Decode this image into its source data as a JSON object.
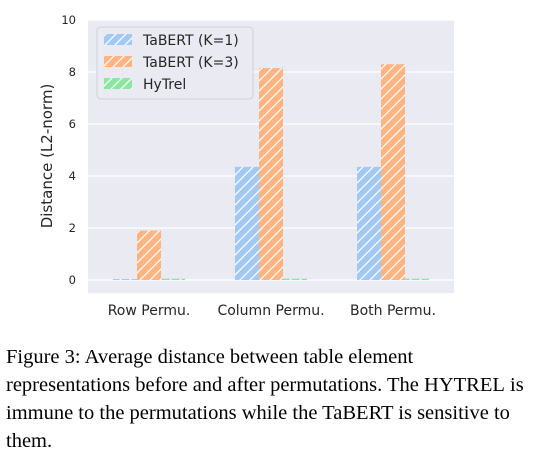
{
  "chart_data": {
    "type": "bar",
    "categories": [
      "Row Permu.",
      "Column Permu.",
      "Both Permu."
    ],
    "series": [
      {
        "name": "TaBERT (K=1)",
        "values": [
          0.0,
          4.35,
          4.35
        ],
        "color": "#a1c9f4",
        "hatch": "//"
      },
      {
        "name": "TaBERT (K=3)",
        "values": [
          1.9,
          8.15,
          8.3
        ],
        "color": "#ffb482",
        "hatch": "//"
      },
      {
        "name": "HyTrel",
        "values": [
          0.05,
          0.05,
          0.05
        ],
        "color": "#8de5a1",
        "hatch": "//"
      }
    ],
    "ylabel": "Distance (L2-norm)",
    "xlabel": "",
    "ylim": [
      -0.5,
      10
    ],
    "yticks": [
      0,
      2,
      4,
      6,
      8,
      10
    ],
    "grid": true,
    "background": "#eaeaf2",
    "legend_position": "upper-left"
  },
  "caption": {
    "label": "Figure 3:",
    "text_1": "Average distance between table element representations before and after permutations. The",
    "hytrel_h": "H",
    "hytrel_y": "Y",
    "hytrel_t": "T",
    "hytrel_rel": "REL",
    "text_2": "is immune to the permutations while the TaBERT is sensitive to them."
  }
}
